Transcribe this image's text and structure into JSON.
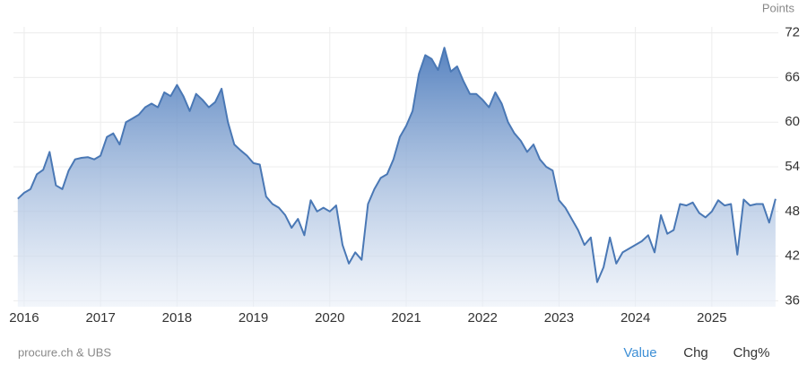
{
  "chart_data": {
    "type": "area",
    "unit_label": "Points",
    "source": "procure.ch & UBS",
    "buttons": [
      "Value",
      "Chg",
      "Chg%"
    ],
    "color": "#4a78b5",
    "grid": true,
    "x": [
      "2015-12",
      "2016-01",
      "2016-02",
      "2016-03",
      "2016-04",
      "2016-05",
      "2016-06",
      "2016-07",
      "2016-08",
      "2016-09",
      "2016-10",
      "2016-11",
      "2016-12",
      "2017-01",
      "2017-02",
      "2017-03",
      "2017-04",
      "2017-05",
      "2017-06",
      "2017-07",
      "2017-08",
      "2017-09",
      "2017-10",
      "2017-11",
      "2017-12",
      "2018-01",
      "2018-02",
      "2018-03",
      "2018-04",
      "2018-05",
      "2018-06",
      "2018-07",
      "2018-08",
      "2018-09",
      "2018-10",
      "2018-11",
      "2018-12",
      "2019-01",
      "2019-02",
      "2019-03",
      "2019-04",
      "2019-05",
      "2019-06",
      "2019-07",
      "2019-08",
      "2019-09",
      "2019-10",
      "2019-11",
      "2019-12",
      "2020-01",
      "2020-02",
      "2020-03",
      "2020-04",
      "2020-05",
      "2020-06",
      "2020-07",
      "2020-08",
      "2020-09",
      "2020-10",
      "2020-11",
      "2020-12",
      "2021-01",
      "2021-02",
      "2021-03",
      "2021-04",
      "2021-05",
      "2021-06",
      "2021-07",
      "2021-08",
      "2021-09",
      "2021-10",
      "2021-11",
      "2021-12",
      "2022-01",
      "2022-02",
      "2022-03",
      "2022-04",
      "2022-05",
      "2022-06",
      "2022-07",
      "2022-08",
      "2022-09",
      "2022-10",
      "2022-11",
      "2022-12",
      "2023-01",
      "2023-02",
      "2023-03",
      "2023-04",
      "2023-05",
      "2023-06",
      "2023-07",
      "2023-08",
      "2023-09",
      "2023-10",
      "2023-11",
      "2023-12",
      "2024-01",
      "2024-02",
      "2024-03",
      "2024-04",
      "2024-05",
      "2024-06",
      "2024-07",
      "2024-08",
      "2024-09",
      "2024-10",
      "2024-11",
      "2024-12",
      "2025-01",
      "2025-02",
      "2025-03",
      "2025-04",
      "2025-05",
      "2025-06",
      "2025-07",
      "2025-08",
      "2025-09",
      "2025-10",
      "2025-11"
    ],
    "values": [
      49.7,
      50.5,
      51.0,
      53.0,
      53.6,
      56.0,
      51.5,
      51.0,
      53.5,
      55.0,
      55.2,
      55.3,
      55.0,
      55.5,
      58.0,
      58.5,
      57.0,
      60.0,
      60.5,
      61.0,
      62.0,
      62.5,
      62.0,
      64.0,
      63.5,
      65.0,
      63.5,
      61.5,
      63.8,
      63.0,
      62.0,
      62.7,
      64.5,
      60.0,
      57.0,
      56.2,
      55.5,
      54.5,
      54.3,
      50.0,
      49.0,
      48.5,
      47.5,
      45.8,
      47.0,
      44.8,
      49.5,
      48.0,
      48.5,
      48.0,
      48.8,
      43.5,
      41.0,
      42.5,
      41.5,
      49.0,
      51.0,
      52.5,
      53.0,
      55.0,
      58.0,
      59.5,
      61.5,
      66.5,
      69.0,
      68.5,
      67.0,
      70.0,
      66.8,
      67.5,
      65.5,
      63.8,
      63.8,
      63.0,
      62.0,
      64.0,
      62.5,
      60.0,
      58.5,
      57.5,
      56.0,
      57.0,
      55.0,
      54.0,
      53.5,
      49.5,
      48.5,
      47.0,
      45.5,
      43.5,
      44.5,
      38.5,
      40.5,
      44.5,
      41.0,
      42.5,
      43.0,
      43.5,
      44.0,
      44.8,
      42.5,
      47.5,
      45.0,
      45.5,
      49.0,
      48.8,
      49.2,
      47.8,
      47.2,
      48.0,
      49.5,
      48.8,
      49.0,
      42.2,
      49.6,
      48.8,
      49.0,
      49.0,
      46.5,
      49.7
    ],
    "xlim": [
      2015.86,
      2025.87
    ],
    "xticks": [
      2016,
      2017,
      2018,
      2019,
      2020,
      2021,
      2022,
      2023,
      2024,
      2025
    ],
    "ylim": [
      35.2,
      72.8
    ],
    "yticks": [
      36,
      42,
      48,
      54,
      60,
      66,
      72
    ]
  }
}
